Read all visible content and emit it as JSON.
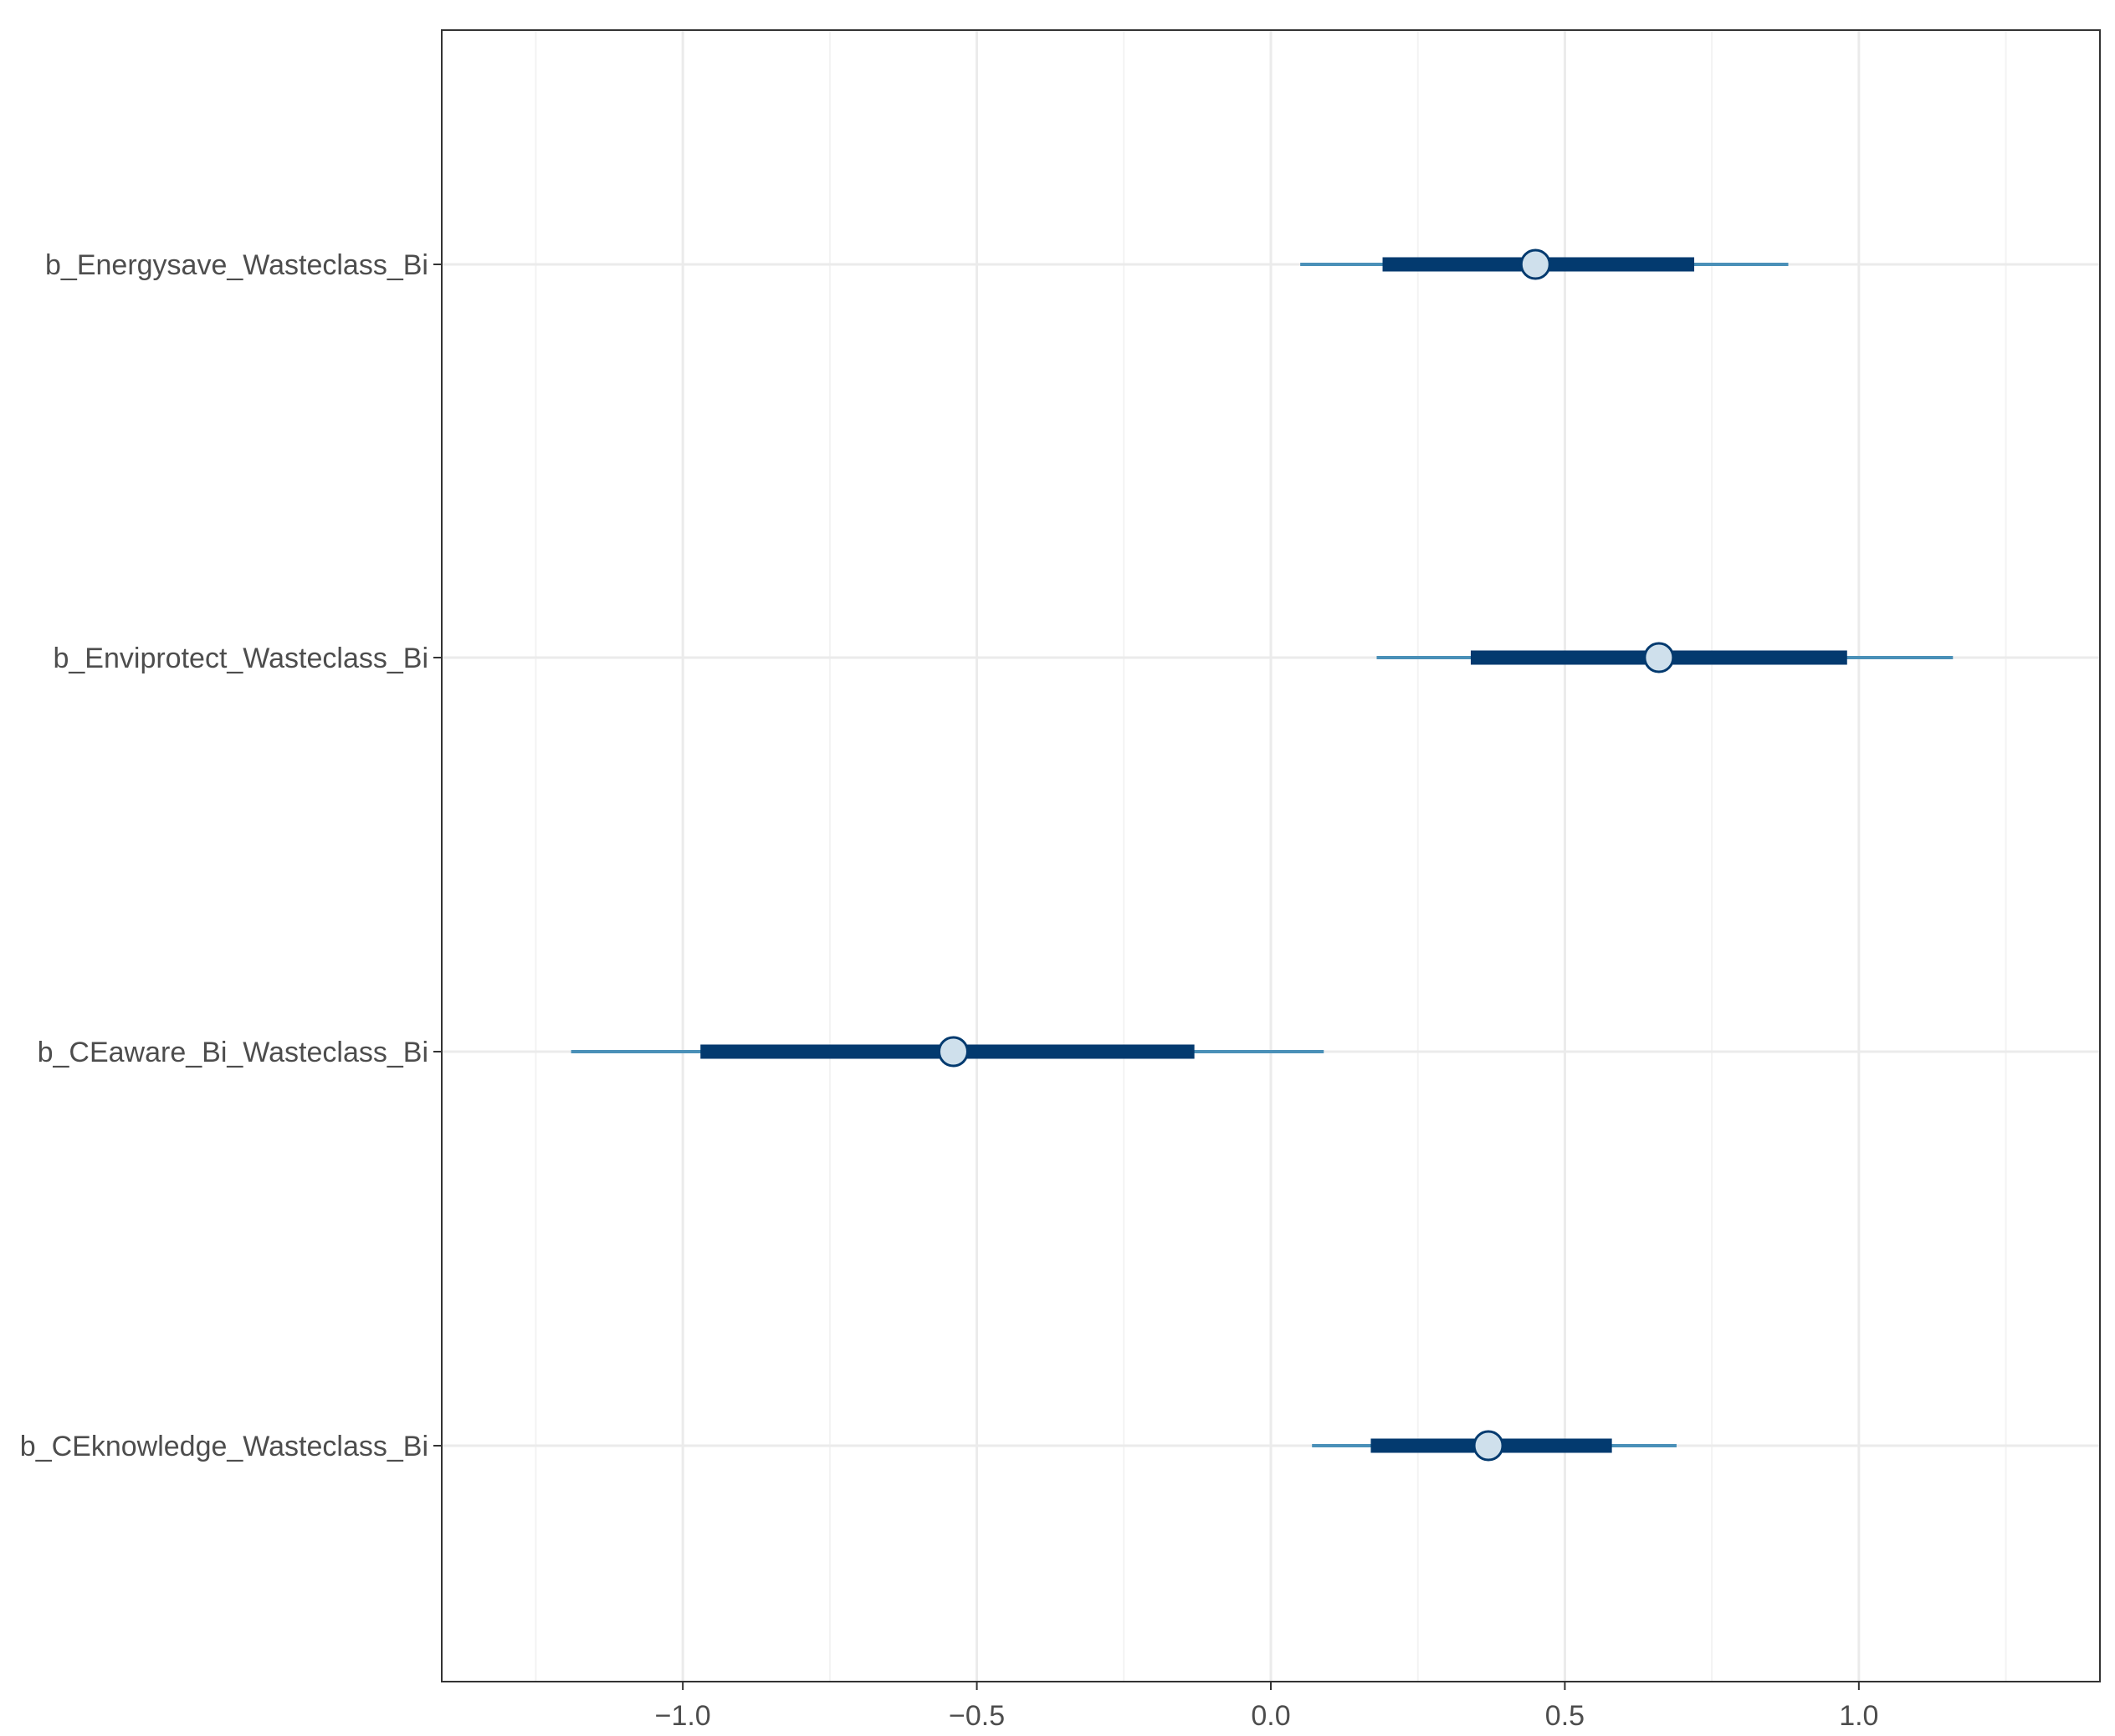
{
  "chart_data": {
    "type": "interval",
    "title": "",
    "xlabel": "",
    "ylabel": "",
    "xlim": [
      -1.41,
      1.41
    ],
    "x_ticks": [
      -1.0,
      -0.5,
      0.0,
      0.5,
      1.0
    ],
    "x_tick_labels": [
      "−1.0",
      "−0.5",
      "0.0",
      "0.5",
      "1.0"
    ],
    "grid": true,
    "legend": "none",
    "categories": [
      "b_Energysave_Wasteclass_Bi",
      "b_Enviprotect_Wasteclass_Bi",
      "b_CEaware_Bi_Wasteclass_Bi",
      "b_CEknowledge_Wasteclass_Bi"
    ],
    "estimates": [
      {
        "name": "b_Energysave_Wasteclass_Bi",
        "point": 0.45,
        "inner": [
          0.19,
          0.72
        ],
        "outer": [
          0.05,
          0.88
        ]
      },
      {
        "name": "b_Enviprotect_Wasteclass_Bi",
        "point": 0.66,
        "inner": [
          0.34,
          0.98
        ],
        "outer": [
          0.18,
          1.16
        ]
      },
      {
        "name": "b_CEaware_Bi_Wasteclass_Bi",
        "point": -0.54,
        "inner": [
          -0.97,
          -0.13
        ],
        "outer": [
          -1.19,
          0.09
        ]
      },
      {
        "name": "b_CEknowledge_Wasteclass_Bi",
        "point": 0.37,
        "inner": [
          0.17,
          0.58
        ],
        "outer": [
          0.07,
          0.69
        ]
      }
    ],
    "colors": {
      "outer_interval": "#4a90b8",
      "inner_interval": "#033a6f",
      "point_fill": "#cfe0ec",
      "point_stroke": "#033a6f",
      "grid_major": "#ebebeb",
      "grid_minor": "#f3f3f3",
      "panel_border": "#333333"
    }
  }
}
